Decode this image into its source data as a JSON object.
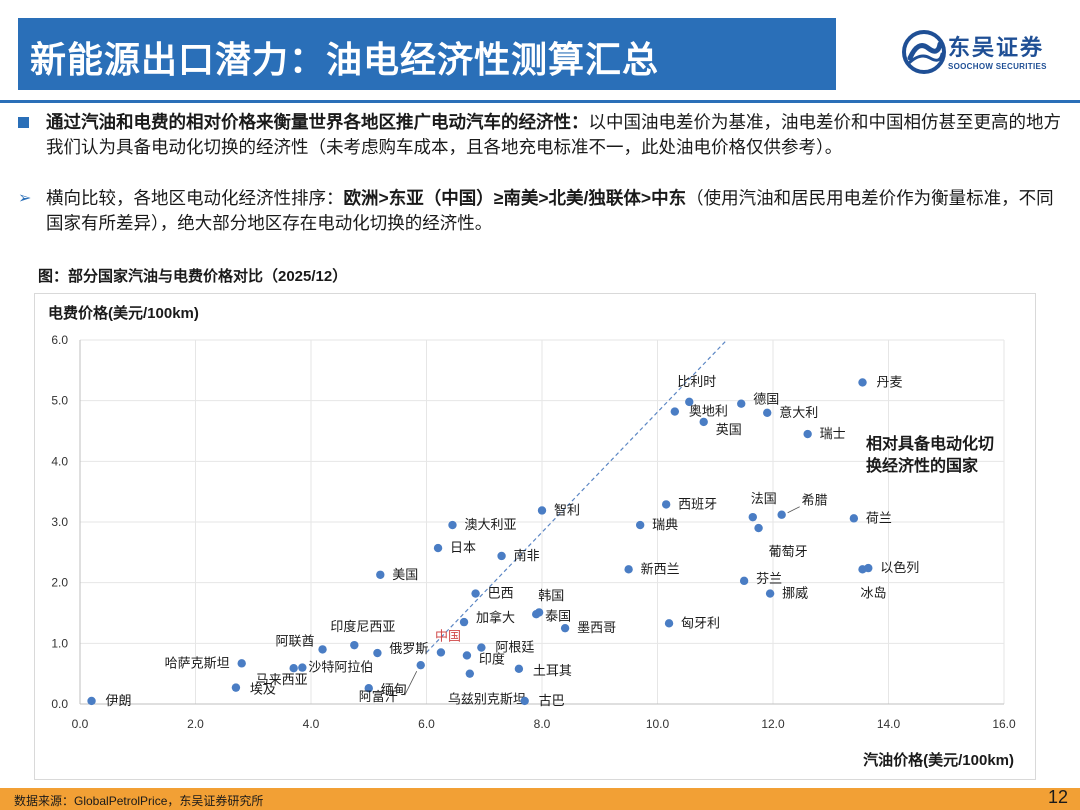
{
  "header": {
    "title": "新能源出口潜力：油电经济性测算汇总",
    "brand_cn": "东吴证券",
    "brand_en": "SOOCHOW SECURITIES"
  },
  "bullets": [
    {
      "marker": "■",
      "bold": "通过汽油和电费的相对价格来衡量世界各地区推广电动汽车的经济性：",
      "text": "以中国油电差价为基准，油电差价和中国相仿甚至更高的地方我们认为具备电动化切换的经济性（未考虑购车成本，且各地充电标准不一，此处油电价格仅供参考）。"
    },
    {
      "marker": "➢",
      "prefix": "横向比较，各地区电动化经济性排序：",
      "bold": "欧洲>东亚（中国）≥南美>北美/独联体>中东",
      "text": "（使用汽油和居民用电差价作为衡量标准，不同国家有所差异），绝大部分地区存在电动化切换的经济性。"
    }
  ],
  "chart_caption": "图：部分国家汽油与电费价格对比（2025/12）",
  "chart_data": {
    "type": "scatter",
    "title": "图：部分国家汽油与电费价格对比（2025/12）",
    "xlabel": "汽油价格(美元/100km)",
    "ylabel": "电费价格(美元/100km)",
    "xlim": [
      0,
      16
    ],
    "ylim": [
      0,
      6
    ],
    "xticks": [
      "0.0",
      "2.0",
      "4.0",
      "6.0",
      "8.0",
      "10.0",
      "12.0",
      "14.0",
      "16.0"
    ],
    "yticks": [
      "0.0",
      "1.0",
      "2.0",
      "3.0",
      "4.0",
      "5.0",
      "6.0"
    ],
    "annotation": [
      "相对具备电动化切",
      "换经济性的国家"
    ],
    "reference_line": {
      "from": [
        6.0,
        0.85
      ],
      "to": [
        11.2,
        6.0
      ]
    },
    "points": [
      {
        "name": "伊朗",
        "x": 0.2,
        "y": 0.05
      },
      {
        "name": "哈萨克斯坦",
        "x": 2.8,
        "y": 0.67
      },
      {
        "name": "埃及",
        "x": 2.7,
        "y": 0.27
      },
      {
        "name": "马来西亚",
        "x": 3.7,
        "y": 0.59
      },
      {
        "name": "沙特阿拉伯",
        "x": 3.85,
        "y": 0.6
      },
      {
        "name": "阿联酋",
        "x": 4.2,
        "y": 0.9
      },
      {
        "name": "印度尼西亚",
        "x": 4.75,
        "y": 0.97
      },
      {
        "name": "缅甸",
        "x": 5.0,
        "y": 0.26
      },
      {
        "name": "俄罗斯",
        "x": 5.15,
        "y": 0.84
      },
      {
        "name": "阿富汗",
        "x": 5.9,
        "y": 0.64
      },
      {
        "name": "中国",
        "x": 6.25,
        "y": 0.85,
        "highlight": true
      },
      {
        "name": "印度",
        "x": 6.7,
        "y": 0.8
      },
      {
        "name": "乌兹别克斯坦",
        "x": 6.75,
        "y": 0.5
      },
      {
        "name": "阿根廷",
        "x": 6.95,
        "y": 0.93
      },
      {
        "name": "加拿大",
        "x": 6.65,
        "y": 1.35
      },
      {
        "name": "巴西",
        "x": 6.85,
        "y": 1.82
      },
      {
        "name": "土耳其",
        "x": 7.6,
        "y": 0.58
      },
      {
        "name": "古巴",
        "x": 7.7,
        "y": 0.05
      },
      {
        "name": "澳大利亚",
        "x": 6.45,
        "y": 2.95
      },
      {
        "name": "日本",
        "x": 6.2,
        "y": 2.57
      },
      {
        "name": "南非",
        "x": 7.3,
        "y": 2.44
      },
      {
        "name": "美国",
        "x": 5.2,
        "y": 2.13
      },
      {
        "name": "智利",
        "x": 8.0,
        "y": 3.19
      },
      {
        "name": "韩国",
        "x": 7.9,
        "y": 1.48
      },
      {
        "name": "泰国",
        "x": 7.95,
        "y": 1.51
      },
      {
        "name": "墨西哥",
        "x": 8.4,
        "y": 1.25
      },
      {
        "name": "新西兰",
        "x": 9.5,
        "y": 2.22
      },
      {
        "name": "瑞典",
        "x": 9.7,
        "y": 2.95
      },
      {
        "name": "西班牙",
        "x": 10.15,
        "y": 3.29
      },
      {
        "name": "匈牙利",
        "x": 10.2,
        "y": 1.33
      },
      {
        "name": "比利时",
        "x": 10.55,
        "y": 4.98
      },
      {
        "name": "奥地利",
        "x": 10.3,
        "y": 4.82
      },
      {
        "name": "英国",
        "x": 10.8,
        "y": 4.65
      },
      {
        "name": "德国",
        "x": 11.45,
        "y": 4.95
      },
      {
        "name": "意大利",
        "x": 11.9,
        "y": 4.8
      },
      {
        "name": "瑞士",
        "x": 12.6,
        "y": 4.45
      },
      {
        "name": "法国",
        "x": 11.65,
        "y": 3.08
      },
      {
        "name": "希腊",
        "x": 12.15,
        "y": 3.12
      },
      {
        "name": "葡萄牙",
        "x": 11.75,
        "y": 2.9
      },
      {
        "name": "芬兰",
        "x": 11.5,
        "y": 2.03
      },
      {
        "name": "挪威",
        "x": 11.95,
        "y": 1.82
      },
      {
        "name": "丹麦",
        "x": 13.55,
        "y": 5.3
      },
      {
        "name": "荷兰",
        "x": 13.4,
        "y": 3.06
      },
      {
        "name": "以色列",
        "x": 13.65,
        "y": 2.24
      },
      {
        "name": "冰岛",
        "x": 13.55,
        "y": 2.22
      }
    ]
  },
  "footer": {
    "source": "数据来源：GlobalPetrolPrice，东吴证券研究所",
    "page": "12"
  },
  "colors": {
    "title_bar": "#2a6fb8",
    "point": "#4a7dc4",
    "highlight_label": "#d04a4a",
    "footer": "#f2a035"
  }
}
